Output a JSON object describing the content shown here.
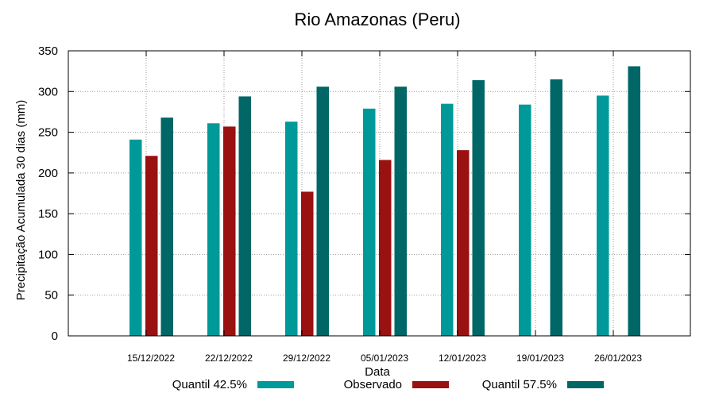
{
  "chart_data": {
    "type": "bar",
    "title": "Rio Amazonas (Peru)",
    "xlabel": "Data",
    "ylabel": "Precipitação Acumulada 30 dias (mm)",
    "ylim": [
      0,
      350
    ],
    "yticks": [
      0,
      50,
      100,
      150,
      200,
      250,
      300,
      350
    ],
    "grid": true,
    "legend_position": "bottom",
    "categories": [
      "15/12/2022",
      "22/12/2022",
      "29/12/2022",
      "05/01/2023",
      "12/01/2023",
      "19/01/2023",
      "26/01/2023"
    ],
    "series": [
      {
        "name": "Quantil 42.5%",
        "color": "#009999",
        "values": [
          241,
          261,
          263,
          279,
          285,
          284,
          295
        ]
      },
      {
        "name": "Observado",
        "color": "#991111",
        "values": [
          221,
          257,
          177,
          216,
          228,
          null,
          null
        ]
      },
      {
        "name": "Quantil 57.5%",
        "color": "#006666",
        "values": [
          268,
          294,
          306,
          306,
          314,
          315,
          331
        ]
      }
    ]
  }
}
